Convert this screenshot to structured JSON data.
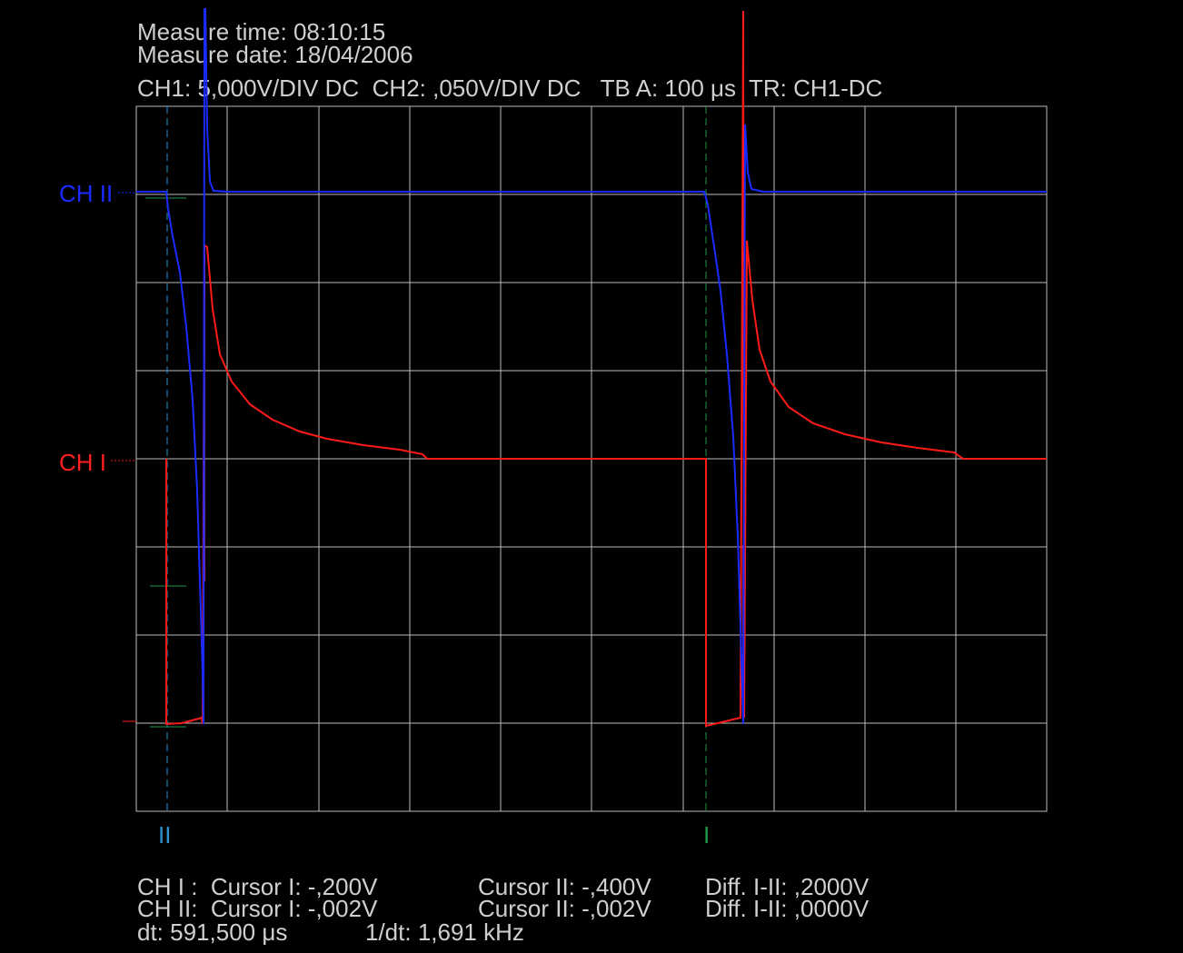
{
  "header": {
    "time": "Measure time: 08:10:15",
    "date": "Measure date: 18/04/2006",
    "settings": "CH1: 5,000V/DIV DC  CH2: ,050V/DIV DC   TB A: 100 μs  TR: CH1-DC"
  },
  "channels": {
    "ch2": "CH II",
    "ch1": "CH I"
  },
  "cursors": {
    "cursor2": "II",
    "cursor1": "I"
  },
  "readout": {
    "rows": [
      [
        "CH I :  Cursor I: -,200V",
        "Cursor II: -,400V",
        "Diff. I-II: ,2000V"
      ],
      [
        "CH II:  Cursor I: -,002V",
        "Cursor II: -,002V",
        "Diff. I-II: ,0000V"
      ],
      [
        "dt: 591,500 μs",
        "1/dt: 1,691 kHz"
      ]
    ]
  }
}
